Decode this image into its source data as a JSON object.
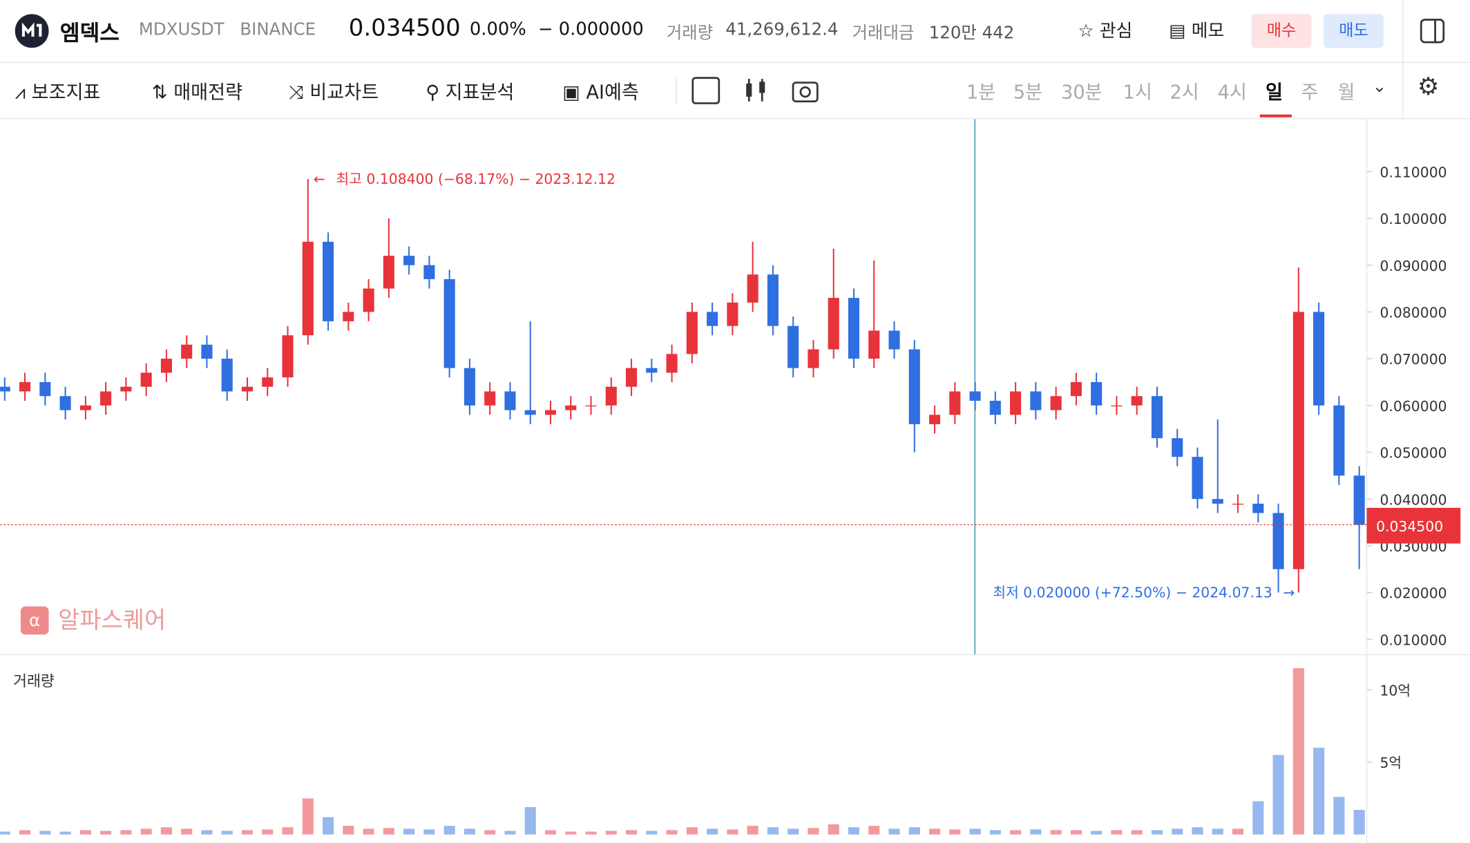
{
  "header": {
    "name": "엠덱스",
    "symbol": "MDXUSDT",
    "exchange": "BINANCE",
    "price": "0.034500",
    "change_pct": "0.00%",
    "change": "0.000000",
    "volume_label": "거래량",
    "volume": "41,269,612.4",
    "amount_label": "거래대금",
    "amount": "120만 442",
    "watch": "관심",
    "memo": "메모",
    "buy": "매수",
    "sell": "매도"
  },
  "toolbar": {
    "items": [
      "보조지표",
      "매매전략",
      "비교차트",
      "지표분석",
      "AI예측"
    ],
    "timeframes": [
      "1분",
      "5분",
      "30분",
      "1시",
      "2시",
      "4시",
      "일",
      "주",
      "월"
    ],
    "active_timeframe": 6
  },
  "watermark": "알파스퀘어",
  "chart_data": {
    "type": "candlestick",
    "up_color": "#e8333a",
    "down_color": "#2f6fe0",
    "open": [
      0.064,
      0.063,
      0.065,
      0.062,
      0.059,
      0.06,
      0.063,
      0.064,
      0.067,
      0.07,
      0.073,
      0.07,
      0.063,
      0.064,
      0.066,
      0.075,
      0.095,
      0.078,
      0.08,
      0.085,
      0.092,
      0.09,
      0.087,
      0.068,
      0.06,
      0.063,
      0.059,
      0.058,
      0.059,
      0.06,
      0.06,
      0.064,
      0.068,
      0.067,
      0.071,
      0.08,
      0.077,
      0.082,
      0.088,
      0.077,
      0.068,
      0.072,
      0.083,
      0.07,
      0.076,
      0.072,
      0.056,
      0.058,
      0.063,
      0.061,
      0.058,
      0.063,
      0.059,
      0.062,
      0.065,
      0.06,
      0.06,
      0.062,
      0.053,
      0.049,
      0.04,
      0.039,
      0.039,
      0.037,
      0.025,
      0.08,
      0.06,
      0.045
    ],
    "high": [
      0.066,
      0.067,
      0.067,
      0.064,
      0.062,
      0.065,
      0.066,
      0.069,
      0.072,
      0.075,
      0.075,
      0.072,
      0.066,
      0.068,
      0.077,
      0.1084,
      0.097,
      0.082,
      0.087,
      0.1,
      0.094,
      0.092,
      0.089,
      0.07,
      0.065,
      0.065,
      0.078,
      0.061,
      0.062,
      0.062,
      0.066,
      0.07,
      0.07,
      0.073,
      0.082,
      0.082,
      0.084,
      0.095,
      0.09,
      0.079,
      0.074,
      0.0935,
      0.085,
      0.091,
      0.078,
      0.074,
      0.06,
      0.065,
      0.065,
      0.063,
      0.065,
      0.065,
      0.064,
      0.067,
      0.067,
      0.062,
      0.064,
      0.064,
      0.055,
      0.051,
      0.057,
      0.041,
      0.041,
      0.039,
      0.0895,
      0.082,
      0.062,
      0.047
    ],
    "low": [
      0.061,
      0.061,
      0.06,
      0.057,
      0.057,
      0.058,
      0.061,
      0.062,
      0.065,
      0.068,
      0.068,
      0.061,
      0.061,
      0.062,
      0.064,
      0.073,
      0.076,
      0.076,
      0.078,
      0.083,
      0.088,
      0.085,
      0.066,
      0.058,
      0.058,
      0.057,
      0.056,
      0.056,
      0.057,
      0.058,
      0.058,
      0.062,
      0.065,
      0.065,
      0.069,
      0.075,
      0.075,
      0.08,
      0.075,
      0.066,
      0.066,
      0.07,
      0.068,
      0.068,
      0.07,
      0.05,
      0.054,
      0.056,
      0.059,
      0.056,
      0.056,
      0.057,
      0.057,
      0.06,
      0.058,
      0.058,
      0.058,
      0.051,
      0.047,
      0.038,
      0.037,
      0.037,
      0.035,
      0.02,
      0.02,
      0.058,
      0.043,
      0.025
    ],
    "close": [
      0.063,
      0.065,
      0.062,
      0.059,
      0.06,
      0.063,
      0.064,
      0.067,
      0.07,
      0.073,
      0.07,
      0.063,
      0.064,
      0.066,
      0.075,
      0.095,
      0.078,
      0.08,
      0.085,
      0.092,
      0.09,
      0.087,
      0.068,
      0.06,
      0.063,
      0.059,
      0.058,
      0.059,
      0.06,
      0.06,
      0.064,
      0.068,
      0.067,
      0.071,
      0.08,
      0.077,
      0.082,
      0.088,
      0.077,
      0.068,
      0.072,
      0.083,
      0.07,
      0.076,
      0.072,
      0.056,
      0.058,
      0.063,
      0.061,
      0.058,
      0.063,
      0.059,
      0.062,
      0.065,
      0.06,
      0.06,
      0.062,
      0.053,
      0.049,
      0.04,
      0.039,
      0.039,
      0.037,
      0.025,
      0.08,
      0.06,
      0.045,
      0.0345
    ],
    "volume": [
      20000000.0,
      30000000.0,
      25000000.0,
      20000000.0,
      30000000.0,
      25000000.0,
      30000000.0,
      40000000.0,
      50000000.0,
      40000000.0,
      30000000.0,
      25000000.0,
      30000000.0,
      35000000.0,
      50000000.0,
      250000000.0,
      120000000.0,
      60000000.0,
      40000000.0,
      45000000.0,
      40000000.0,
      35000000.0,
      60000000.0,
      40000000.0,
      30000000.0,
      25000000.0,
      190000000.0,
      30000000.0,
      20000000.0,
      20000000.0,
      25000000.0,
      30000000.0,
      25000000.0,
      30000000.0,
      50000000.0,
      40000000.0,
      35000000.0,
      60000000.0,
      50000000.0,
      40000000.0,
      45000000.0,
      70000000.0,
      50000000.0,
      60000000.0,
      40000000.0,
      50000000.0,
      40000000.0,
      35000000.0,
      40000000.0,
      30000000.0,
      30000000.0,
      35000000.0,
      30000000.0,
      30000000.0,
      25000000.0,
      30000000.0,
      30000000.0,
      30000000.0,
      40000000.0,
      50000000.0,
      40000000.0,
      40000000.0,
      230000000.0,
      550000000.0,
      1150000000.0,
      600000000.0,
      260000000.0,
      170000000.0
    ],
    "ylim": [
      0.0068,
      0.1212
    ],
    "yticks": [
      {
        "value": 0.11,
        "label": "0.110000"
      },
      {
        "value": 0.1,
        "label": "0.100000"
      },
      {
        "value": 0.09,
        "label": "0.090000"
      },
      {
        "value": 0.08,
        "label": "0.080000"
      },
      {
        "value": 0.07,
        "label": "0.070000"
      },
      {
        "value": 0.06,
        "label": "0.060000"
      },
      {
        "value": 0.05,
        "label": "0.050000"
      },
      {
        "value": 0.04,
        "label": "0.040000"
      },
      {
        "value": 0.03,
        "label": "0.030000"
      },
      {
        "value": 0.02,
        "label": "0.020000"
      },
      {
        "value": 0.01,
        "label": "0.010000"
      }
    ],
    "current_price": {
      "value": 0.0345,
      "label": "0.034500"
    },
    "high_annotation": "최고 0.108400 (−68.17%) − 2023.12.12",
    "low_annotation": "최저 0.020000 (+72.50%) − 2024.07.13",
    "volume_title": "거래량",
    "volume_ylim": [
      0,
      1240000000
    ],
    "volume_yticks": [
      {
        "value": 1000000000,
        "label": "10억"
      },
      {
        "value": 500000000,
        "label": "5억"
      }
    ]
  }
}
